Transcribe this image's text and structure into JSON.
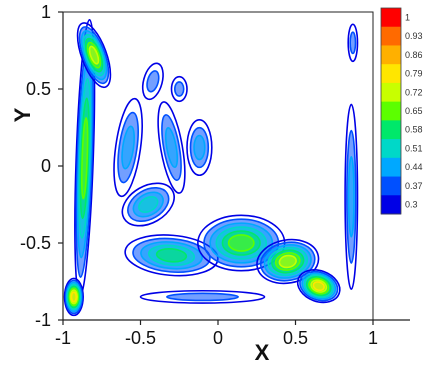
{
  "chart_data": {
    "type": "heatmap",
    "title": "",
    "xlabel": "X",
    "ylabel": "Y",
    "xlim": [
      -1,
      1
    ],
    "ylim": [
      -1,
      1
    ],
    "x_ticks": [
      -1,
      -0.5,
      0,
      0.5,
      1
    ],
    "y_ticks": [
      -1,
      -0.5,
      0,
      0.5,
      1
    ],
    "x_tick_labels": [
      "-1",
      "-0.5",
      "0",
      "0.5",
      "1"
    ],
    "y_tick_labels": [
      "-1",
      "-0.5",
      "0",
      "0.5",
      "1"
    ],
    "colorbar": {
      "placement": "top-right",
      "range": [
        0.3,
        1
      ],
      "levels": [
        1,
        0.93,
        0.86,
        0.79,
        0.72,
        0.65,
        0.58,
        0.51,
        0.44,
        0.37,
        0.3
      ],
      "labels": [
        "1",
        "0.93",
        "0.86",
        "0.79",
        "0.72",
        "0.65",
        "0.58",
        "0.51",
        "0.44",
        "0.37",
        "0.3"
      ],
      "colors": [
        "#ff0000",
        "#ff6a00",
        "#ffb000",
        "#ffe600",
        "#c8ff00",
        "#5cff00",
        "#00e86a",
        "#00d8c8",
        "#00a8ff",
        "#0050ff",
        "#0000e6"
      ]
    },
    "blobs": [
      {
        "id": "left-wall",
        "cx": -0.86,
        "cy": 0.05,
        "rx": 0.055,
        "ry": 0.9,
        "rot": 2,
        "level": 0.65
      },
      {
        "id": "left-top",
        "cx": -0.8,
        "cy": 0.72,
        "rx": 0.08,
        "ry": 0.22,
        "rot": -20,
        "level": 0.72
      },
      {
        "id": "left-bottom",
        "cx": -0.93,
        "cy": -0.85,
        "rx": 0.06,
        "ry": 0.12,
        "rot": 0,
        "level": 0.79
      },
      {
        "id": "upper-blob-1",
        "cx": -0.58,
        "cy": 0.12,
        "rx": 0.08,
        "ry": 0.32,
        "rot": 8,
        "level": 0.44
      },
      {
        "id": "upper-blob-2",
        "cx": -0.3,
        "cy": 0.12,
        "rx": 0.07,
        "ry": 0.3,
        "rot": -10,
        "level": 0.44
      },
      {
        "id": "upper-blob-3",
        "cx": -0.12,
        "cy": 0.12,
        "rx": 0.08,
        "ry": 0.18,
        "rot": 0,
        "level": 0.44
      },
      {
        "id": "upper-blob-4",
        "cx": -0.42,
        "cy": 0.55,
        "rx": 0.06,
        "ry": 0.12,
        "rot": 15,
        "level": 0.37
      },
      {
        "id": "upper-blob-5",
        "cx": -0.25,
        "cy": 0.5,
        "rx": 0.05,
        "ry": 0.08,
        "rot": 0,
        "level": 0.37
      },
      {
        "id": "diag-band",
        "cx": -0.45,
        "cy": -0.25,
        "rx": 0.18,
        "ry": 0.12,
        "rot": -30,
        "level": 0.51
      },
      {
        "id": "lower-band-1",
        "cx": -0.3,
        "cy": -0.58,
        "rx": 0.3,
        "ry": 0.13,
        "rot": 5,
        "level": 0.58
      },
      {
        "id": "lower-band-2",
        "cx": 0.15,
        "cy": -0.5,
        "rx": 0.28,
        "ry": 0.18,
        "rot": 0,
        "level": 0.65
      },
      {
        "id": "lower-band-3",
        "cx": 0.45,
        "cy": -0.62,
        "rx": 0.2,
        "ry": 0.14,
        "rot": -10,
        "level": 0.72
      },
      {
        "id": "lower-band-4",
        "cx": 0.65,
        "cy": -0.78,
        "rx": 0.14,
        "ry": 0.1,
        "rot": 20,
        "level": 0.79
      },
      {
        "id": "lower-streak",
        "cx": -0.1,
        "cy": -0.85,
        "rx": 0.4,
        "ry": 0.04,
        "rot": 0,
        "level": 0.37
      },
      {
        "id": "right-wall",
        "cx": 0.86,
        "cy": -0.2,
        "rx": 0.04,
        "ry": 0.6,
        "rot": 0,
        "level": 0.44
      },
      {
        "id": "right-top",
        "cx": 0.87,
        "cy": 0.8,
        "rx": 0.03,
        "ry": 0.12,
        "rot": 0,
        "level": 0.37
      }
    ]
  }
}
